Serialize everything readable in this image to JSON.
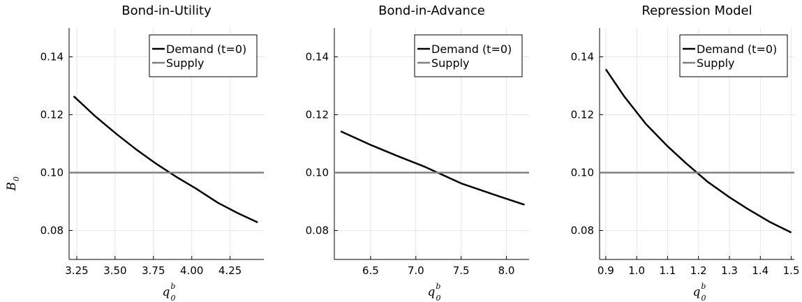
{
  "colors": {
    "demand": "#000000",
    "supply": "#808080",
    "grid": "#e6e6e6",
    "axis": "#000000"
  },
  "chart_data": [
    {
      "type": "line",
      "title": "Bond-in-Utility",
      "xlabel": "q",
      "xlabel_sup": "b",
      "xlabel_sub": "0",
      "ylabel": "B",
      "ylabel_sub": "0",
      "xlim": [
        3.2,
        4.47
      ],
      "ylim": [
        0.07,
        0.15
      ],
      "xticks": [
        3.25,
        3.5,
        3.75,
        4.0,
        4.25
      ],
      "xtick_labels": [
        "3.25",
        "3.50",
        "3.75",
        "4.00",
        "4.25"
      ],
      "yticks": [
        0.08,
        0.1,
        0.12,
        0.14
      ],
      "ytick_labels": [
        "0.08",
        "0.10",
        "0.12",
        "0.14"
      ],
      "grid": true,
      "legend_position": "top-right",
      "series": [
        {
          "name": "Demand (t=0)",
          "color": "#000000",
          "x": [
            3.23,
            3.37,
            3.51,
            3.64,
            3.77,
            3.9,
            4.03,
            4.17,
            4.3,
            4.43
          ],
          "y": [
            0.1264,
            0.1195,
            0.1133,
            0.1079,
            0.103,
            0.0985,
            0.0944,
            0.0896,
            0.086,
            0.0828
          ]
        },
        {
          "name": "Supply",
          "color": "#808080",
          "x": [
            3.2,
            4.47
          ],
          "y": [
            0.1,
            0.1
          ]
        }
      ]
    },
    {
      "type": "line",
      "title": "Bond-in-Advance",
      "xlabel": "q",
      "xlabel_sup": "b",
      "xlabel_sub": "0",
      "ylabel": "",
      "ylabel_sub": "",
      "xlim": [
        6.1,
        8.25
      ],
      "ylim": [
        0.07,
        0.15
      ],
      "xticks": [
        6.5,
        7.0,
        7.5,
        8.0
      ],
      "xtick_labels": [
        "6.5",
        "7.0",
        "7.5",
        "8.0"
      ],
      "yticks": [
        0.08,
        0.1,
        0.12,
        0.14
      ],
      "ytick_labels": [
        "0.08",
        "0.10",
        "0.12",
        "0.14"
      ],
      "grid": true,
      "legend_position": "top-right",
      "series": [
        {
          "name": "Demand (t=0)",
          "color": "#000000",
          "x": [
            6.17,
            6.5,
            6.8,
            7.1,
            7.5,
            7.9,
            8.2
          ],
          "y": [
            0.1143,
            0.1096,
            0.1057,
            0.102,
            0.0963,
            0.092,
            0.0889
          ]
        },
        {
          "name": "Supply",
          "color": "#808080",
          "x": [
            6.1,
            8.25
          ],
          "y": [
            0.1,
            0.1
          ]
        }
      ]
    },
    {
      "type": "line",
      "title": "Repression Model",
      "xlabel": "q",
      "xlabel_sup": "b",
      "xlabel_sub": "0",
      "ylabel": "",
      "ylabel_sub": "",
      "xlim": [
        0.88,
        1.51
      ],
      "ylim": [
        0.07,
        0.15
      ],
      "xticks": [
        0.9,
        1.0,
        1.1,
        1.2,
        1.3,
        1.4,
        1.5
      ],
      "xtick_labels": [
        "0.9",
        "1.0",
        "1.1",
        "1.2",
        "1.3",
        "1.4",
        "1.5"
      ],
      "yticks": [
        0.08,
        0.1,
        0.12,
        0.14
      ],
      "ytick_labels": [
        "0.08",
        "0.10",
        "0.12",
        "0.14"
      ],
      "grid": true,
      "legend_position": "top-right",
      "series": [
        {
          "name": "Demand (t=0)",
          "color": "#000000",
          "x": [
            0.9,
            0.96,
            1.03,
            1.1,
            1.16,
            1.23,
            1.3,
            1.36,
            1.43,
            1.5
          ],
          "y": [
            0.1357,
            0.1263,
            0.1168,
            0.1091,
            0.1032,
            0.0968,
            0.0915,
            0.0874,
            0.083,
            0.0793
          ]
        },
        {
          "name": "Supply",
          "color": "#808080",
          "x": [
            0.88,
            1.51
          ],
          "y": [
            0.1,
            0.1
          ]
        }
      ]
    }
  ]
}
